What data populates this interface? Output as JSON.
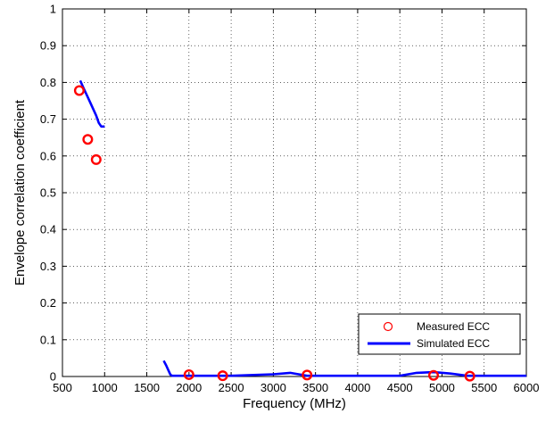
{
  "chart_data": {
    "type": "line",
    "xlabel": "Frequency (MHz)",
    "ylabel": "Envelope correlation coefficient",
    "xlim": [
      500,
      6000
    ],
    "ylim": [
      0,
      1
    ],
    "xticks": [
      500,
      1000,
      1500,
      2000,
      2500,
      3000,
      3500,
      4000,
      4500,
      5000,
      5500,
      6000
    ],
    "yticks": [
      0,
      0.1,
      0.2,
      0.3,
      0.4,
      0.5,
      0.6,
      0.7,
      0.8,
      0.9,
      1
    ],
    "ytick_labels": [
      "0",
      "0.1",
      "0.2",
      "0.3",
      "0.4",
      "0.5",
      "0.6",
      "0.7",
      "0.8",
      "0.9",
      "1"
    ],
    "grid": true,
    "legend_position": "bottom-right",
    "series": [
      {
        "name": "Measured ECC",
        "kind": "scatter",
        "marker": "circle",
        "color": "#ff0000",
        "x": [
          700,
          800,
          900,
          2000,
          2400,
          3400,
          4900,
          5330
        ],
        "y": [
          0.778,
          0.645,
          0.59,
          0.005,
          0.002,
          0.004,
          0.003,
          0.001
        ]
      },
      {
        "name": "Simulated ECC",
        "kind": "line",
        "color": "#0000ff",
        "segments": [
          {
            "x": [
              710,
              750,
              800,
              850,
              900,
              930,
              960,
              1000
            ],
            "y": [
              0.805,
              0.785,
              0.76,
              0.735,
              0.71,
              0.69,
              0.68,
              0.68
            ]
          },
          {
            "x": [
              1700,
              1730,
              1760,
              1780,
              1800,
              2000,
              2500,
              3000,
              3200,
              3300,
              3400,
              4000,
              4500,
              4700,
              4900,
              5100,
              5300,
              5500,
              6000
            ],
            "y": [
              0.043,
              0.03,
              0.015,
              0.005,
              0.002,
              0.002,
              0.002,
              0.006,
              0.01,
              0.006,
              0.002,
              0.002,
              0.002,
              0.01,
              0.012,
              0.008,
              0.002,
              0.002,
              0.002
            ]
          }
        ]
      }
    ]
  }
}
